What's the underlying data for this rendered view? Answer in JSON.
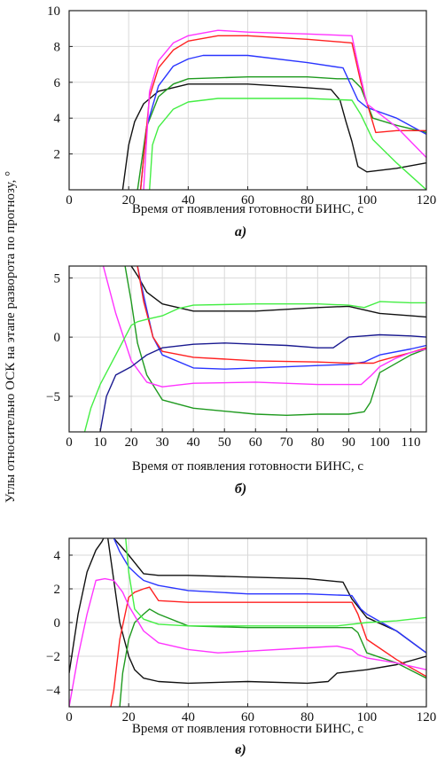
{
  "figure": {
    "ylabel": "Углы относительно ОСК на этапе разворота по прогнозу, °"
  },
  "chart_data": [
    {
      "type": "line",
      "panel_label": "а)",
      "xlabel": "Время от появления готовности БИНС, с",
      "xlim": [
        0,
        120
      ],
      "ylim": [
        0,
        10
      ],
      "xticks": [
        0,
        20,
        40,
        60,
        80,
        100,
        120
      ],
      "yticks": [
        2,
        4,
        6,
        8,
        10
      ],
      "grid": true,
      "series": [
        {
          "color": "#111111",
          "x": [
            18,
            20,
            22,
            25,
            30,
            40,
            60,
            80,
            88,
            91,
            93,
            95,
            97,
            100,
            110,
            120
          ],
          "y": [
            0,
            2.5,
            3.8,
            4.8,
            5.5,
            5.9,
            5.9,
            5.7,
            5.6,
            5.0,
            3.8,
            2.7,
            1.3,
            1.0,
            1.2,
            1.5
          ]
        },
        {
          "color": "#1f9a1f",
          "x": [
            23,
            26,
            30,
            35,
            40,
            60,
            80,
            90,
            95,
            98,
            102,
            110,
            120
          ],
          "y": [
            0,
            3.5,
            5.2,
            5.9,
            6.2,
            6.3,
            6.3,
            6.2,
            6.2,
            5.7,
            4.0,
            3.6,
            3.2
          ]
        },
        {
          "color": "#2a35ff",
          "x": [
            24,
            26,
            30,
            35,
            40,
            45,
            60,
            80,
            92,
            97,
            100,
            110,
            120
          ],
          "y": [
            0,
            3.5,
            5.8,
            6.9,
            7.3,
            7.5,
            7.5,
            7.1,
            6.8,
            5.0,
            4.6,
            4.0,
            3.1
          ]
        },
        {
          "color": "#ff2020",
          "x": [
            24,
            27,
            30,
            35,
            40,
            50,
            60,
            80,
            95,
            98,
            103,
            110,
            120
          ],
          "y": [
            0,
            5.2,
            6.8,
            7.8,
            8.3,
            8.6,
            8.6,
            8.4,
            8.2,
            6.0,
            3.2,
            3.3,
            3.3
          ]
        },
        {
          "color": "#ff33ff",
          "x": [
            25,
            27,
            30,
            35,
            40,
            50,
            60,
            80,
            95,
            97,
            100,
            110,
            120
          ],
          "y": [
            0,
            5.5,
            7.2,
            8.2,
            8.6,
            8.9,
            8.8,
            8.7,
            8.6,
            7.0,
            4.8,
            3.5,
            1.8
          ]
        },
        {
          "color": "#44ee44",
          "x": [
            27,
            28,
            30,
            35,
            40,
            50,
            60,
            80,
            95,
            98,
            102,
            110,
            120
          ],
          "y": [
            0,
            2.5,
            3.5,
            4.5,
            4.9,
            5.1,
            5.1,
            5.1,
            5.0,
            4.2,
            2.8,
            1.5,
            0
          ]
        }
      ]
    },
    {
      "type": "line",
      "panel_label": "б)",
      "xlabel": "Время от появления готовности БИНС, с",
      "xlim": [
        0,
        115
      ],
      "ylim": [
        -8,
        6
      ],
      "xticks": [
        0,
        10,
        20,
        30,
        40,
        50,
        60,
        70,
        80,
        90,
        100,
        110
      ],
      "yticks": [
        -5,
        0,
        5
      ],
      "grid": true,
      "series": [
        {
          "color": "#111111",
          "x": [
            20,
            22,
            25,
            30,
            40,
            60,
            80,
            90,
            95,
            100,
            110,
            115
          ],
          "y": [
            6,
            5.2,
            3.8,
            2.8,
            2.2,
            2.2,
            2.5,
            2.6,
            2.3,
            2.0,
            1.8,
            1.7
          ]
        },
        {
          "color": "#1f9a1f",
          "x": [
            18,
            20,
            22,
            25,
            30,
            40,
            60,
            70,
            80,
            90,
            95,
            97,
            100,
            110,
            115
          ],
          "y": [
            6,
            3.0,
            -0.5,
            -3.2,
            -5.3,
            -6.0,
            -6.5,
            -6.6,
            -6.5,
            -6.5,
            -6.3,
            -5.5,
            -3.0,
            -1.5,
            -1.0
          ]
        },
        {
          "color": "#2a35ff",
          "x": [
            22,
            24,
            27,
            30,
            40,
            50,
            60,
            80,
            90,
            95,
            100,
            110,
            115
          ],
          "y": [
            6,
            3.5,
            0.0,
            -1.5,
            -2.6,
            -2.7,
            -2.6,
            -2.4,
            -2.3,
            -2.1,
            -1.5,
            -1.0,
            -0.7
          ]
        },
        {
          "color": "#ff2020",
          "x": [
            22,
            24,
            27,
            30,
            40,
            60,
            80,
            90,
            95,
            98,
            100,
            110,
            115
          ],
          "y": [
            6,
            3.0,
            0.0,
            -1.2,
            -1.7,
            -2.0,
            -2.1,
            -2.2,
            -2.2,
            -2.2,
            -2.0,
            -1.3,
            -0.9
          ]
        },
        {
          "color": "#ff33ff",
          "x": [
            11,
            15,
            20,
            25,
            30,
            40,
            60,
            80,
            94,
            97,
            100,
            105,
            110,
            115
          ],
          "y": [
            6,
            2.0,
            -2.0,
            -3.8,
            -4.2,
            -3.9,
            -3.8,
            -4.0,
            -4.0,
            -3.3,
            -2.5,
            -1.8,
            -1.3,
            -1.0
          ]
        },
        {
          "color": "#44ee44",
          "x": [
            5,
            7,
            10,
            15,
            20,
            22,
            25,
            30,
            35,
            40,
            60,
            80,
            90,
            95,
            100,
            110,
            115
          ],
          "y": [
            -8,
            -6,
            -4.0,
            -1.5,
            1.0,
            1.3,
            1.5,
            1.8,
            2.4,
            2.7,
            2.8,
            2.8,
            2.7,
            2.5,
            3.0,
            2.9,
            2.9
          ]
        },
        {
          "color": "#1a1a90",
          "x": [
            10,
            12,
            15,
            20,
            25,
            30,
            40,
            50,
            60,
            70,
            80,
            85,
            90,
            95,
            100,
            110,
            115
          ],
          "y": [
            -8,
            -5.0,
            -3.2,
            -2.5,
            -1.5,
            -0.9,
            -0.6,
            -0.5,
            -0.6,
            -0.7,
            -0.9,
            -0.9,
            0.0,
            0.1,
            0.2,
            0.1,
            0.0
          ]
        }
      ]
    },
    {
      "type": "line",
      "panel_label": "в)",
      "xlabel": "Время от появления готовности БИНС, с",
      "xlim": [
        0,
        120
      ],
      "ylim": [
        -5,
        5
      ],
      "xticks": [
        0,
        20,
        40,
        60,
        80,
        100,
        120
      ],
      "yticks": [
        -4,
        -2,
        0,
        2,
        4
      ],
      "grid": true,
      "series": [
        {
          "color": "#111111",
          "x": [
            0,
            3,
            6,
            9,
            11,
            13,
            15,
            20,
            25,
            30,
            40,
            60,
            80,
            92,
            95,
            100,
            110,
            120
          ],
          "y": [
            -3,
            0.5,
            3.0,
            4.3,
            4.8,
            5.5,
            5,
            4.0,
            2.9,
            2.8,
            2.8,
            2.7,
            2.6,
            2.4,
            1.4,
            0.3,
            -0.5,
            -1.8
          ]
        },
        {
          "color": "#111111",
          "x": [
            13,
            15,
            17,
            20,
            22,
            25,
            30,
            40,
            60,
            80,
            87,
            90,
            95,
            100,
            110,
            120
          ],
          "y": [
            5,
            2.5,
            0.0,
            -2.0,
            -2.8,
            -3.3,
            -3.5,
            -3.6,
            -3.5,
            -3.6,
            -3.5,
            -3.0,
            -2.9,
            -2.8,
            -2.5,
            -2.0
          ]
        },
        {
          "color": "#2a35ff",
          "x": [
            15,
            17,
            20,
            23,
            25,
            30,
            40,
            60,
            80,
            95,
            98,
            100,
            110,
            120
          ],
          "y": [
            5,
            4.2,
            3.3,
            2.8,
            2.5,
            2.2,
            1.9,
            1.7,
            1.7,
            1.6,
            0.8,
            0.5,
            -0.5,
            -1.8
          ]
        },
        {
          "color": "#ff2020",
          "x": [
            14,
            15,
            17,
            20,
            22,
            25,
            27,
            30,
            40,
            60,
            80,
            95,
            97,
            100,
            110,
            120
          ],
          "y": [
            -5,
            -4,
            -1.0,
            1.5,
            1.8,
            2.0,
            2.1,
            1.3,
            1.2,
            1.2,
            1.2,
            1.2,
            0.5,
            -1.0,
            -2.2,
            -3.2
          ]
        },
        {
          "color": "#1f9a1f",
          "x": [
            17,
            18,
            20,
            22,
            25,
            27,
            30,
            40,
            60,
            80,
            95,
            97,
            100,
            110,
            120
          ],
          "y": [
            -5,
            -3,
            -1.0,
            0.0,
            0.5,
            0.8,
            0.5,
            -0.2,
            -0.3,
            -0.3,
            -0.3,
            -0.6,
            -1.8,
            -2.4,
            -3.3
          ]
        },
        {
          "color": "#ff33ff",
          "x": [
            0,
            3,
            6,
            9,
            12,
            15,
            18,
            20,
            25,
            30,
            40,
            50,
            60,
            80,
            90,
            95,
            97,
            100,
            110,
            120
          ],
          "y": [
            -5,
            -2.0,
            0.5,
            2.5,
            2.6,
            2.5,
            1.8,
            1.0,
            -0.5,
            -1.2,
            -1.6,
            -1.8,
            -1.7,
            -1.5,
            -1.4,
            -1.6,
            -1.9,
            -2.1,
            -2.4,
            -2.8
          ]
        },
        {
          "color": "#44ee44",
          "x": [
            19,
            20,
            22,
            25,
            30,
            40,
            60,
            80,
            90,
            95,
            100,
            110,
            120
          ],
          "y": [
            5,
            3.0,
            0.8,
            0.2,
            -0.1,
            -0.2,
            -0.2,
            -0.2,
            -0.2,
            -0.1,
            0.0,
            0.1,
            0.3
          ]
        }
      ]
    }
  ]
}
